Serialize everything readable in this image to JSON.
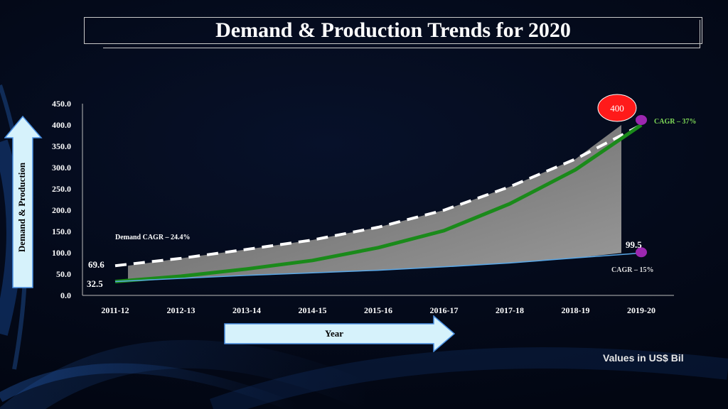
{
  "title": "Demand & Production Trends for 2020",
  "yaxis_label": "Demand & Production",
  "xaxis_label": "Year",
  "footnote": "Values in US$ Bil",
  "annotations": {
    "demand_cagr": "Demand CAGR – 24.4%",
    "cagr_top": "CAGR – 37%",
    "cagr_bottom": "CAGR – 15%",
    "start_high": "69.6",
    "start_low": "32.5",
    "end_low": "99.5",
    "peak": "400"
  },
  "colors": {
    "green": "#1a8a1a",
    "blue_line": "#5aa8e8",
    "area_top": "#9a9a9a",
    "area_bottom": "#5e5e5e",
    "dashed": "#ffffff",
    "badge": "#ff1a1a",
    "marker": "#9c27b0",
    "arrow_fill": "#d6f2fb"
  },
  "chart_data": {
    "type": "line",
    "categories": [
      "2011-12",
      "2012-13",
      "2013-14",
      "2014-15",
      "2015-16",
      "2016-17",
      "2017-18",
      "2018-19",
      "2019-20"
    ],
    "yticks": [
      "0.0",
      "50.0",
      "100.0",
      "150.0",
      "200.0",
      "250.0",
      "300.0",
      "350.0",
      "400.0",
      "450.0"
    ],
    "ylim": [
      0,
      450
    ],
    "series": [
      {
        "values": [
          69.6,
          87,
          108,
          130,
          160,
          200,
          255,
          320,
          400
        ],
        "style": "dashed-white"
      },
      {
        "values": [
          32.5,
          45,
          62,
          82,
          112,
          152,
          215,
          295,
          400
        ],
        "style": "green"
      },
      {
        "values": [
          32.5,
          40,
          47,
          53,
          59,
          67,
          76,
          88,
          99.5
        ],
        "style": "blue"
      }
    ],
    "area": {
      "upper": [
        69.6,
        87,
        108,
        130,
        160,
        200,
        255,
        320,
        400
      ],
      "lower": [
        32.5,
        40,
        47,
        53,
        59,
        67,
        76,
        88,
        99.5
      ]
    },
    "grid": false
  }
}
